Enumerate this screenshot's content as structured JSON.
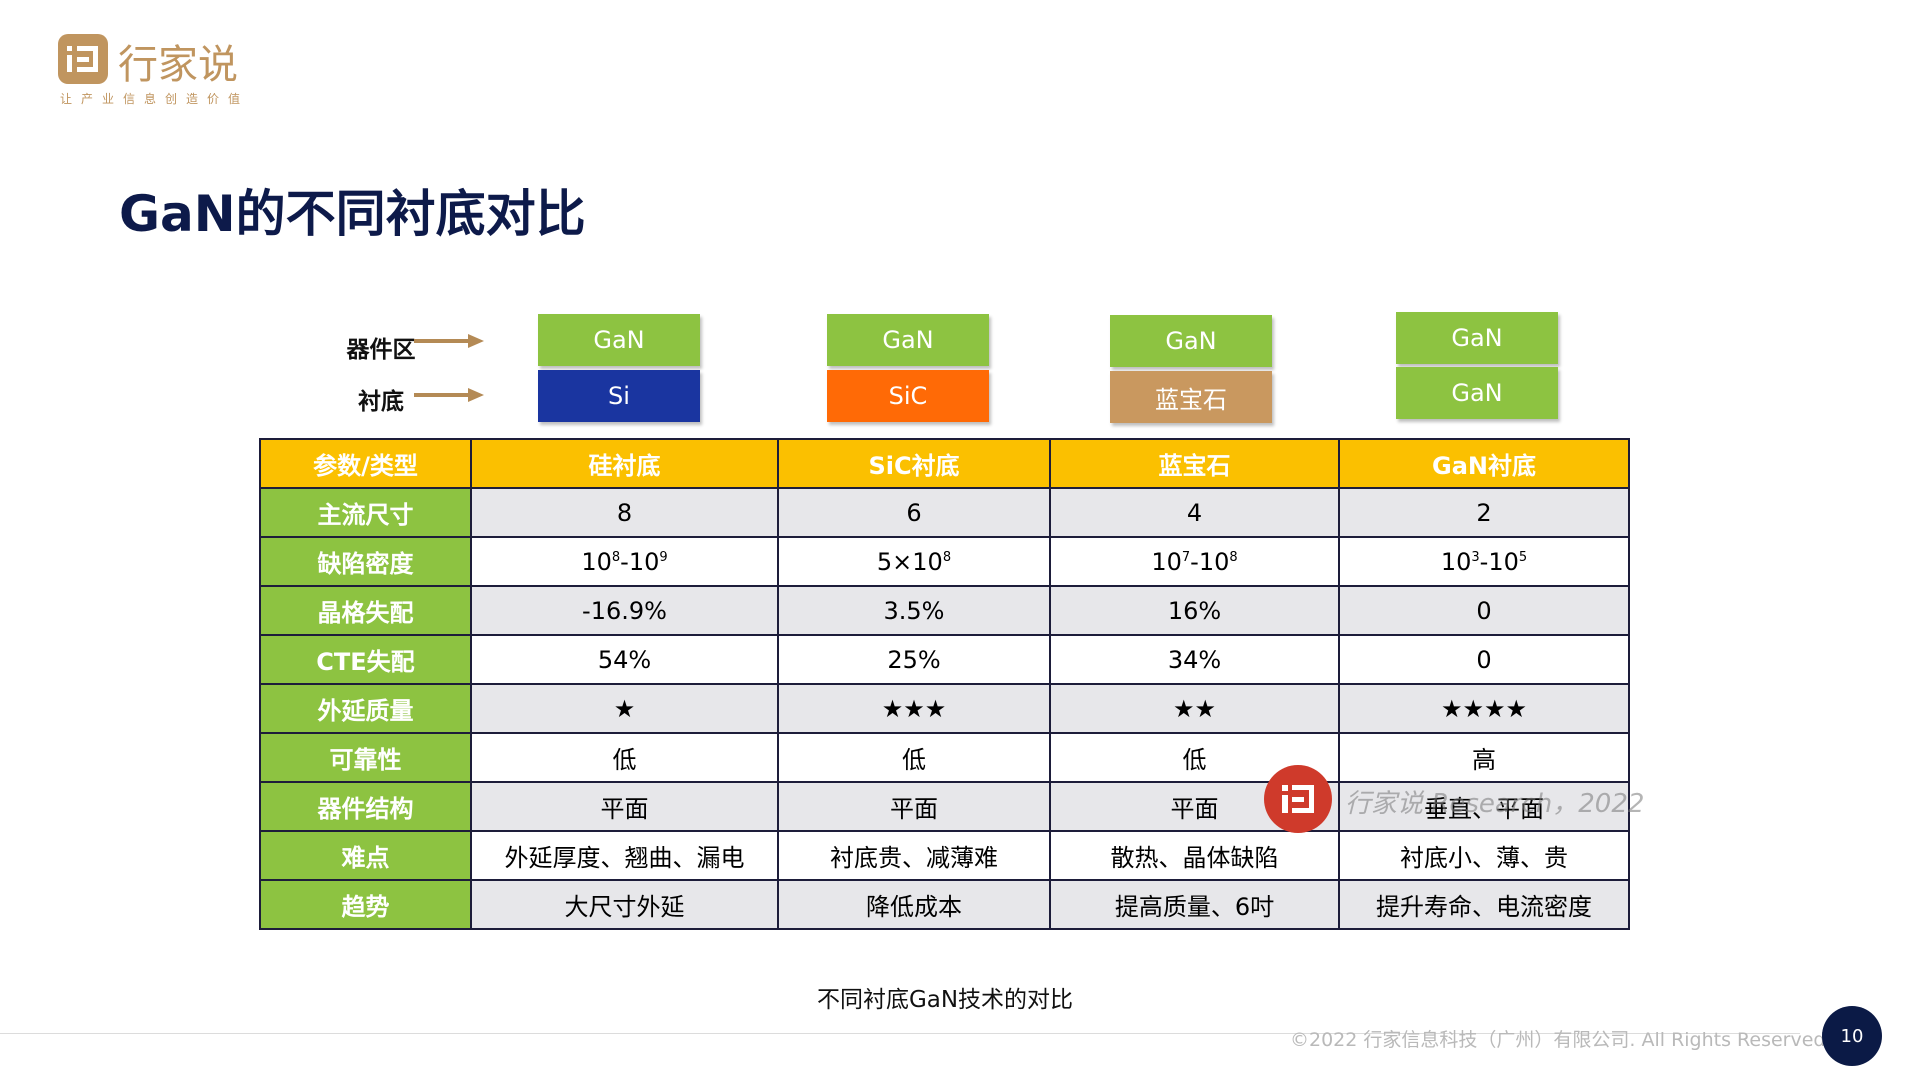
{
  "logo": {
    "name": "行家说",
    "slogan": "让产业信息创造价值"
  },
  "title": "GaN的不同衬底对比",
  "diagram": {
    "device_label": "器件区",
    "substrate_label": "衬底",
    "columns": [
      {
        "top": "GaN",
        "bottom": "Si",
        "bottom_color": "#1a35a0"
      },
      {
        "top": "GaN",
        "bottom": "SiC",
        "bottom_color": "#ff6a06"
      },
      {
        "top": "GaN",
        "bottom": "蓝宝石",
        "bottom_color": "#c9985f"
      },
      {
        "top": "GaN",
        "bottom": "GaN",
        "bottom_color": "#8dc341"
      }
    ],
    "top_color": "#8dc341"
  },
  "table": {
    "headers": [
      "参数/类型",
      "硅衬底",
      "SiC衬底",
      "蓝宝石",
      "GaN衬底"
    ],
    "rows": [
      {
        "label": "主流尺寸",
        "cells": [
          "8",
          "6",
          "4",
          "2"
        ]
      },
      {
        "label": "缺陷密度",
        "cells": [
          {
            "base1": "10",
            "exp1": "8",
            "sep": "-",
            "base2": "10",
            "exp2": "9"
          },
          {
            "base1": "5×10",
            "exp1": "8"
          },
          {
            "base1": "10",
            "exp1": "7",
            "sep": "-",
            "base2": "10",
            "exp2": "8"
          },
          {
            "base1": "10",
            "exp1": "3",
            "sep": "-",
            "base2": "10",
            "exp2": "5"
          }
        ]
      },
      {
        "label": "晶格失配",
        "cells": [
          "-16.9%",
          "3.5%",
          "16%",
          "0"
        ]
      },
      {
        "label": "CTE失配",
        "cells": [
          "54%",
          "25%",
          "34%",
          "0"
        ]
      },
      {
        "label": "外延质量",
        "cells": [
          "★",
          "★★★",
          "★★",
          "★★★★"
        ]
      },
      {
        "label": "可靠性",
        "cells": [
          "低",
          "低",
          "低",
          "高"
        ]
      },
      {
        "label": "器件结构",
        "cells": [
          "平面",
          "平面",
          "平面",
          "垂直、平面"
        ]
      },
      {
        "label": "难点",
        "cells": [
          "外延厚度、翘曲、漏电",
          "衬底贵、减薄难",
          "散热、晶体缺陷",
          "衬底小、薄、贵"
        ]
      },
      {
        "label": "趋势",
        "cells": [
          "大尺寸外延",
          "降低成本",
          "提高质量、6吋",
          "提升寿命、电流密度"
        ]
      }
    ]
  },
  "caption": "不同衬底GaN技术的对比",
  "watermark": "行家说 Research，2022",
  "copyright": "©2022 行家信息科技（广州）有限公司. All Rights Reserved.",
  "page_number": "10"
}
